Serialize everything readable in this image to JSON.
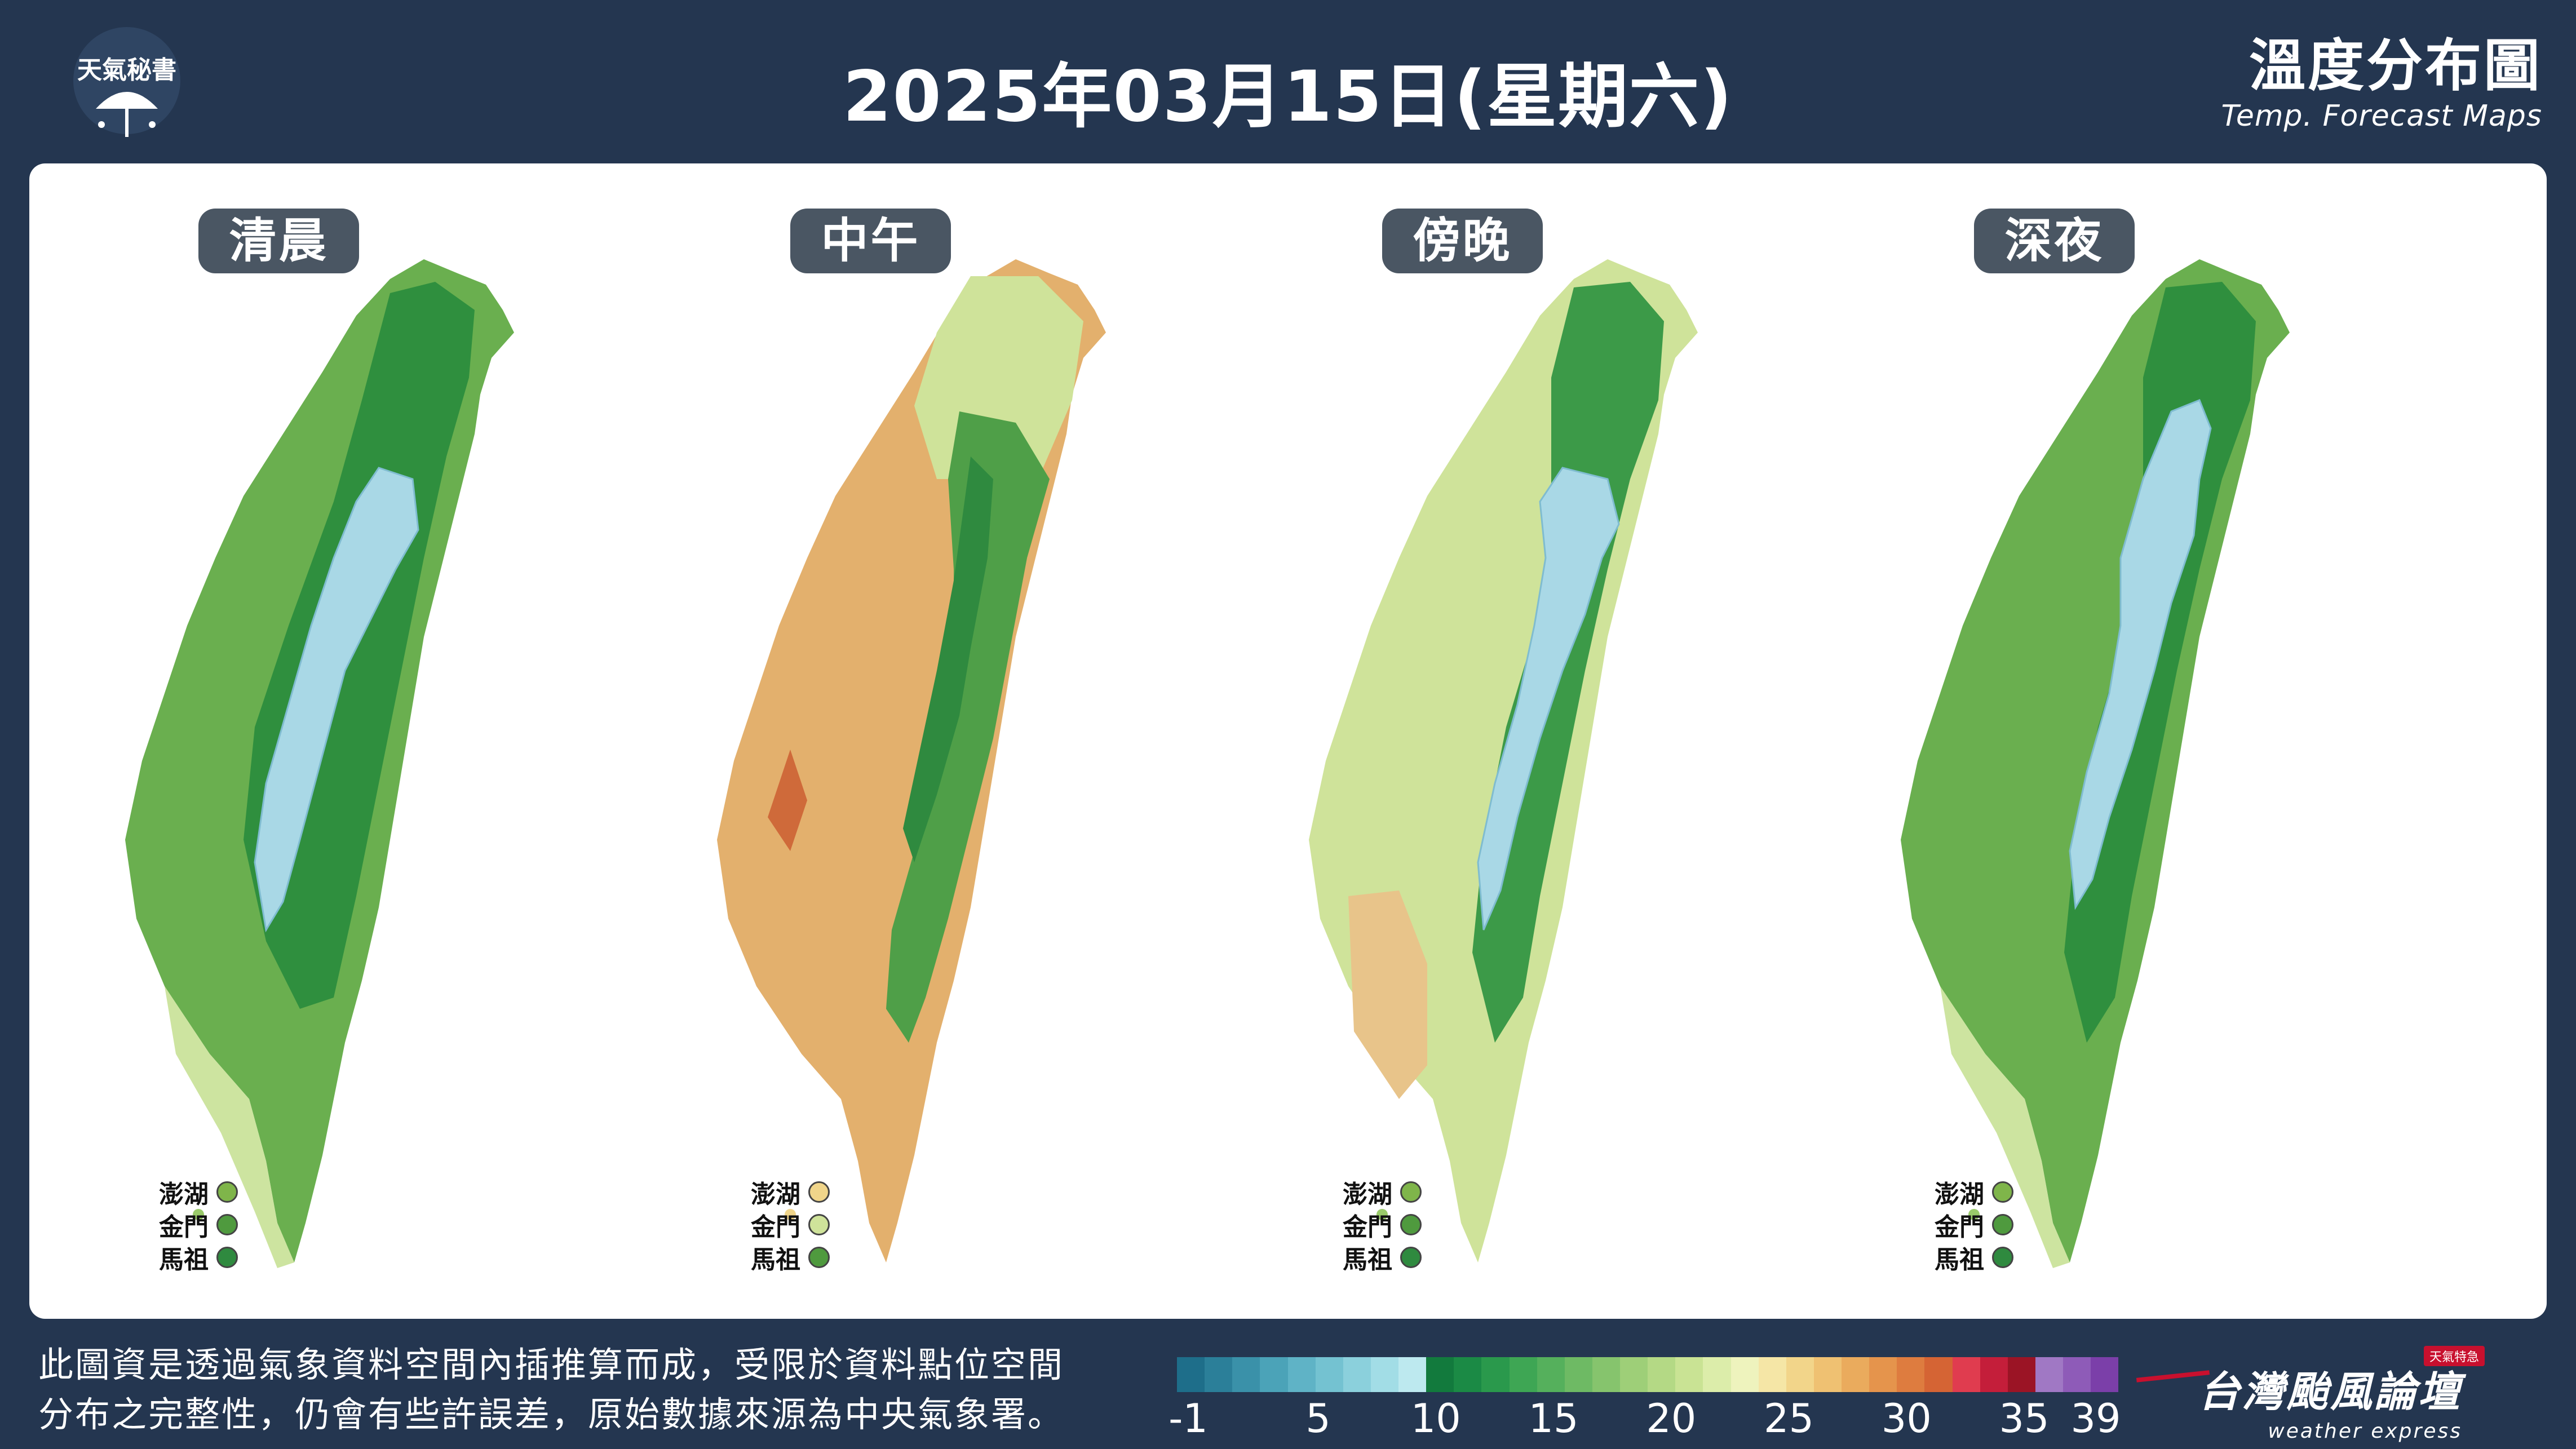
{
  "header": {
    "title": "2025年03月15日(星期六)",
    "logo_text": "天氣秘書",
    "brand_title": "溫度分布圖",
    "brand_subtitle": "Temp. Forecast Maps"
  },
  "maps": [
    {
      "label": "清晨",
      "islands": [
        {
          "name": "澎湖",
          "color": "#7fb54a"
        },
        {
          "name": "金門",
          "color": "#4f9a3e"
        },
        {
          "name": "馬祖",
          "color": "#2f8a3f"
        }
      ]
    },
    {
      "label": "中午",
      "islands": [
        {
          "name": "澎湖",
          "color": "#f0d58a"
        },
        {
          "name": "金門",
          "color": "#cfe39a"
        },
        {
          "name": "馬祖",
          "color": "#4f9a3e"
        }
      ]
    },
    {
      "label": "傍晚",
      "islands": [
        {
          "name": "澎湖",
          "color": "#7fb54a"
        },
        {
          "name": "金門",
          "color": "#4f9a3e"
        },
        {
          "name": "馬祖",
          "color": "#2f8a3f"
        }
      ]
    },
    {
      "label": "深夜",
      "islands": [
        {
          "name": "澎湖",
          "color": "#7fb54a"
        },
        {
          "name": "金門",
          "color": "#4f9a3e"
        },
        {
          "name": "馬祖",
          "color": "#2f8a3f"
        }
      ]
    }
  ],
  "disclaimer": {
    "line1": "此圖資是透過氣象資料空間內插推算而成，受限於資料點位空間",
    "line2": "分布之完整性，仍會有些許誤差，原始數據來源為中央氣象署。"
  },
  "scale": {
    "ticks": [
      "-1",
      "5",
      "10",
      "15",
      "20",
      "25",
      "30",
      "35",
      "39"
    ],
    "colors": [
      "#1e6e8a",
      "#2b7f99",
      "#3a91a9",
      "#4ba3b8",
      "#5fb3c6",
      "#74c2d1",
      "#8bd0dc",
      "#a2dde6",
      "#bde9ef",
      "#127a3d",
      "#1b8a45",
      "#2a994c",
      "#3ea654",
      "#55b05c",
      "#6eba64",
      "#86c46d",
      "#9ecf78",
      "#b4d985",
      "#c9e394",
      "#dcedaa",
      "#eef3bd",
      "#f5e6a6",
      "#f2d58a",
      "#efc172",
      "#eaab5d",
      "#e5944c",
      "#de7c3f",
      "#d56434",
      "#e03c4f",
      "#c41e3a",
      "#9b1425",
      "#a078c4",
      "#8e5bb8",
      "#7b3fa9"
    ]
  },
  "footer": {
    "title": "台灣颱風論壇",
    "subtitle": "weather express",
    "tag": "天氣特急"
  }
}
